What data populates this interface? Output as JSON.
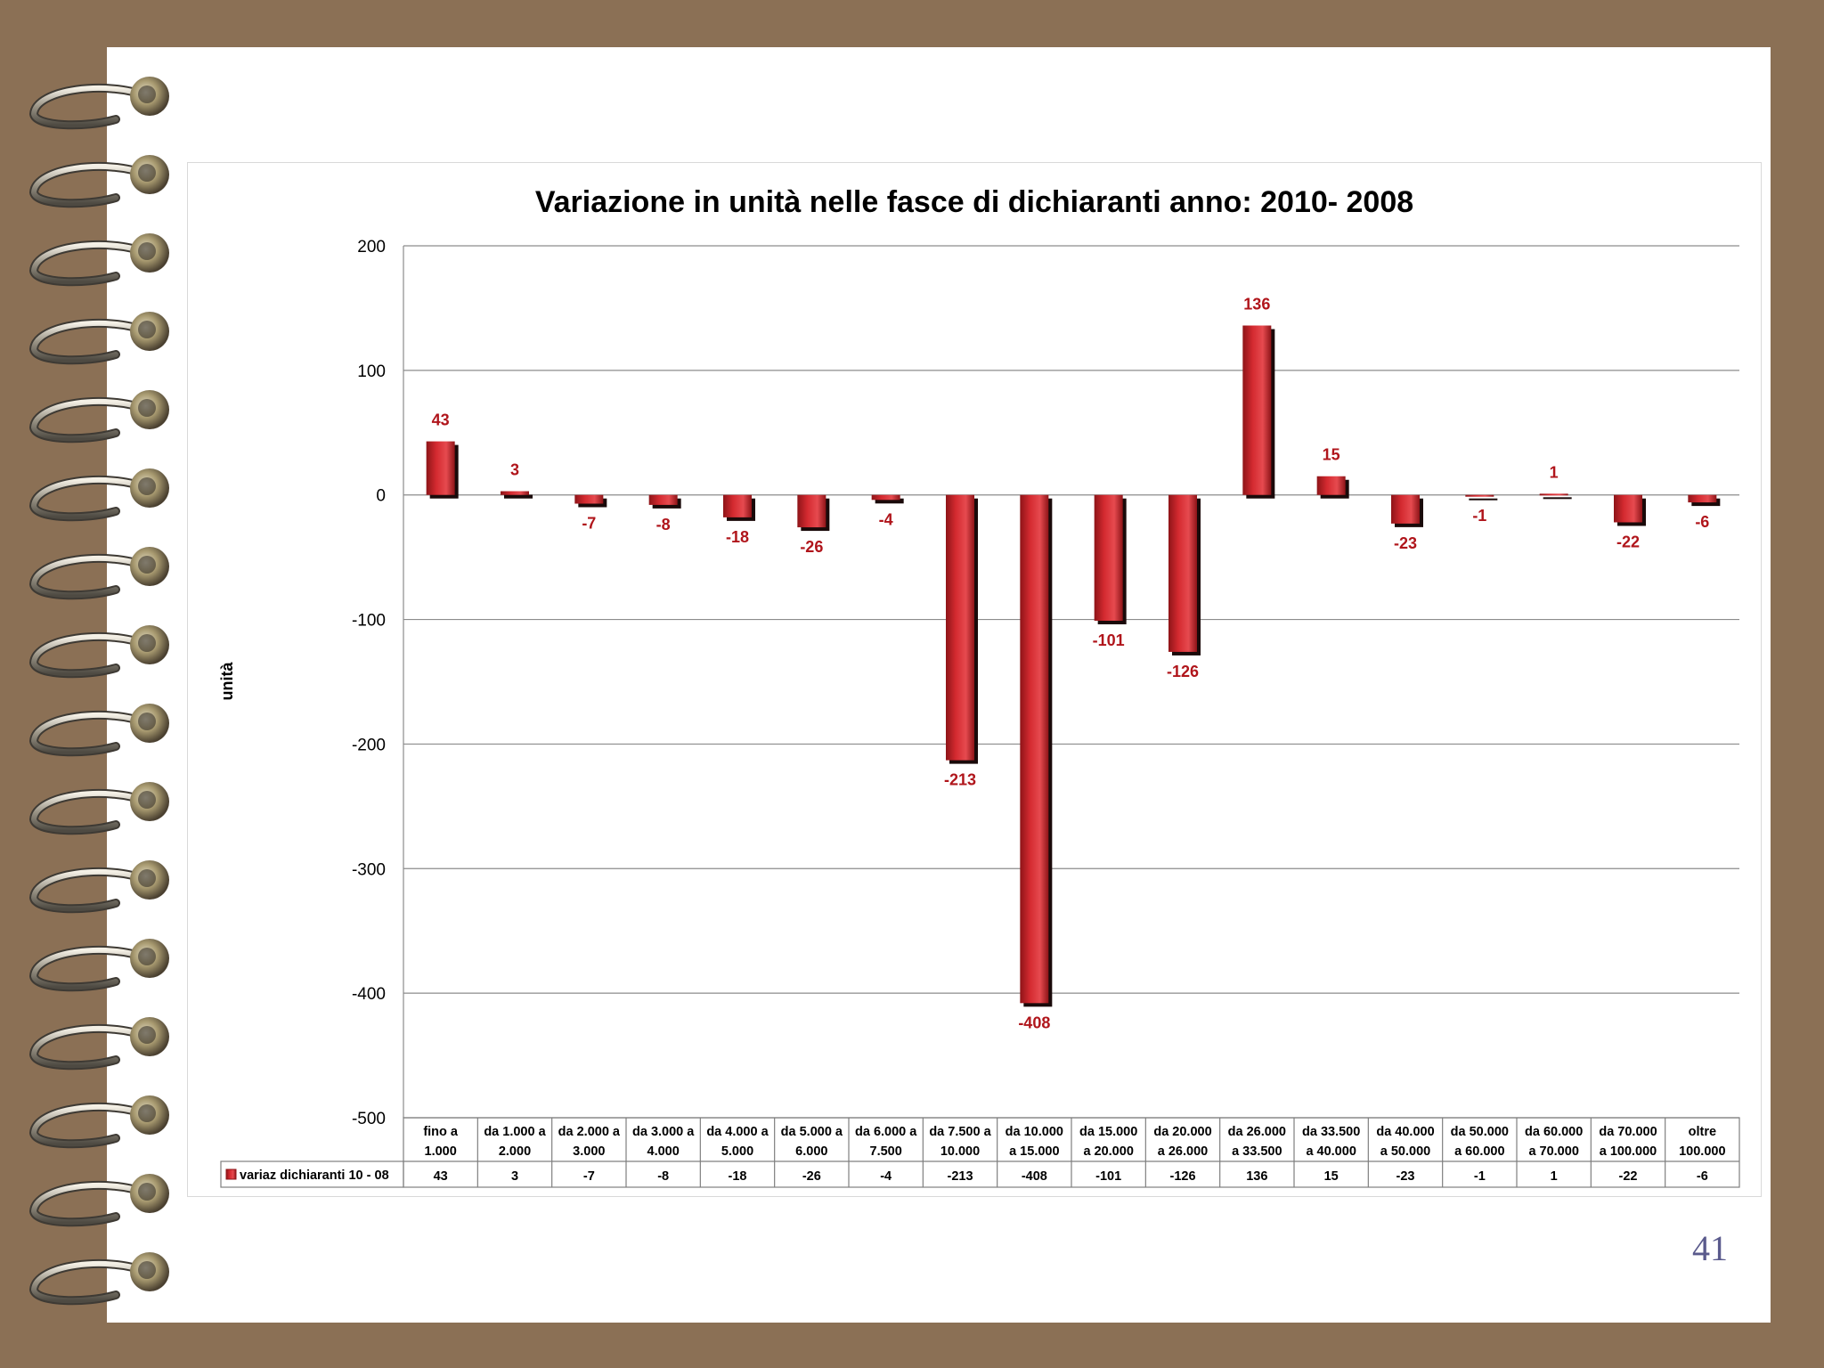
{
  "page": {
    "number": "41"
  },
  "colors": {
    "background": "#8b7055",
    "bar": "#d42a30",
    "bar_dark": "#8e1418",
    "label": "#b0151b",
    "ring": "#7d6e4e"
  },
  "chart_data": {
    "type": "bar",
    "title": "Variazione in unità nelle fasce di  dichiaranti anno: 2010- 2008",
    "ylabel": "unità",
    "xlabel": "",
    "ylim": [
      -500,
      200
    ],
    "yticks": [
      200,
      100,
      0,
      -100,
      -200,
      -300,
      -400,
      -500
    ],
    "grid": true,
    "legend_position": "data-table-left",
    "categories": [
      [
        "fino a",
        "1.000"
      ],
      [
        "da 1.000 a",
        "2.000"
      ],
      [
        "da 2.000 a",
        "3.000"
      ],
      [
        "da 3.000 a",
        "4.000"
      ],
      [
        "da 4.000 a",
        "5.000"
      ],
      [
        "da 5.000 a",
        "6.000"
      ],
      [
        "da 6.000 a",
        "7.500"
      ],
      [
        "da 7.500 a",
        "10.000"
      ],
      [
        "da 10.000",
        "a 15.000"
      ],
      [
        "da 15.000",
        "a 20.000"
      ],
      [
        "da 20.000",
        "a 26.000"
      ],
      [
        "da 26.000",
        "a 33.500"
      ],
      [
        "da 33.500",
        "a 40.000"
      ],
      [
        "da 40.000",
        "a 50.000"
      ],
      [
        "da 50.000",
        "a 60.000"
      ],
      [
        "da 60.000",
        "a 70.000"
      ],
      [
        "da 70.000",
        "a 100.000"
      ],
      [
        "oltre",
        "100.000"
      ]
    ],
    "series": [
      {
        "name": "variaz dichiaranti 10 - 08",
        "values": [
          43,
          3,
          -7,
          -8,
          -18,
          -26,
          -4,
          -213,
          -408,
          -101,
          -126,
          136,
          15,
          -23,
          -1,
          1,
          -22,
          -6
        ]
      }
    ]
  }
}
